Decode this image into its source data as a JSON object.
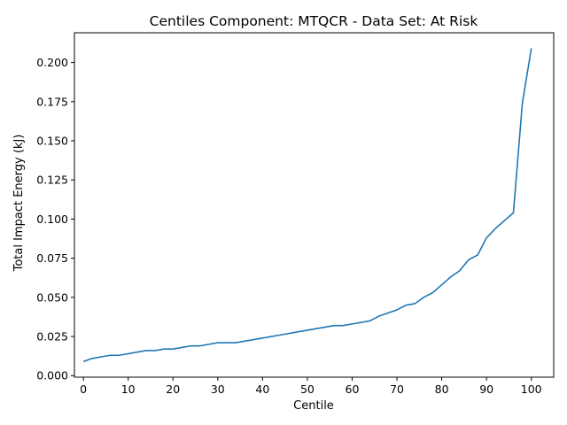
{
  "chart_data": {
    "type": "line",
    "title": "Centiles Component: MTQCR - Data Set: At Risk",
    "xlabel": "Centile",
    "ylabel": "Total Impact Energy (kJ)",
    "xlim": [
      -2,
      105
    ],
    "ylim": [
      -0.001,
      0.219
    ],
    "xticks": [
      0,
      10,
      20,
      30,
      40,
      50,
      60,
      70,
      80,
      90,
      100
    ],
    "xtick_labels": [
      "0",
      "10",
      "20",
      "30",
      "40",
      "50",
      "60",
      "70",
      "80",
      "90",
      "100"
    ],
    "yticks": [
      0.0,
      0.025,
      0.05,
      0.075,
      0.1,
      0.125,
      0.15,
      0.175,
      0.2
    ],
    "ytick_labels": [
      "0.000",
      "0.025",
      "0.050",
      "0.075",
      "0.100",
      "0.125",
      "0.150",
      "0.175",
      "0.200"
    ],
    "grid": false,
    "series": [
      {
        "color": "#1f77b4",
        "x": [
          0,
          2,
          4,
          6,
          8,
          10,
          12,
          14,
          16,
          18,
          20,
          22,
          24,
          26,
          28,
          30,
          32,
          34,
          36,
          38,
          40,
          42,
          44,
          46,
          48,
          50,
          52,
          54,
          56,
          58,
          60,
          62,
          64,
          66,
          68,
          70,
          72,
          74,
          76,
          78,
          80,
          82,
          84,
          86,
          88,
          90,
          92,
          94,
          96,
          98,
          100
        ],
        "y": [
          0.009,
          0.011,
          0.012,
          0.013,
          0.013,
          0.014,
          0.015,
          0.016,
          0.016,
          0.017,
          0.017,
          0.018,
          0.019,
          0.019,
          0.02,
          0.021,
          0.021,
          0.021,
          0.022,
          0.023,
          0.024,
          0.025,
          0.026,
          0.027,
          0.028,
          0.029,
          0.03,
          0.031,
          0.032,
          0.032,
          0.033,
          0.034,
          0.035,
          0.038,
          0.04,
          0.042,
          0.045,
          0.046,
          0.05,
          0.053,
          0.058,
          0.063,
          0.067,
          0.074,
          0.077,
          0.088,
          0.094,
          0.099,
          0.104,
          0.174,
          0.209
        ]
      }
    ]
  }
}
